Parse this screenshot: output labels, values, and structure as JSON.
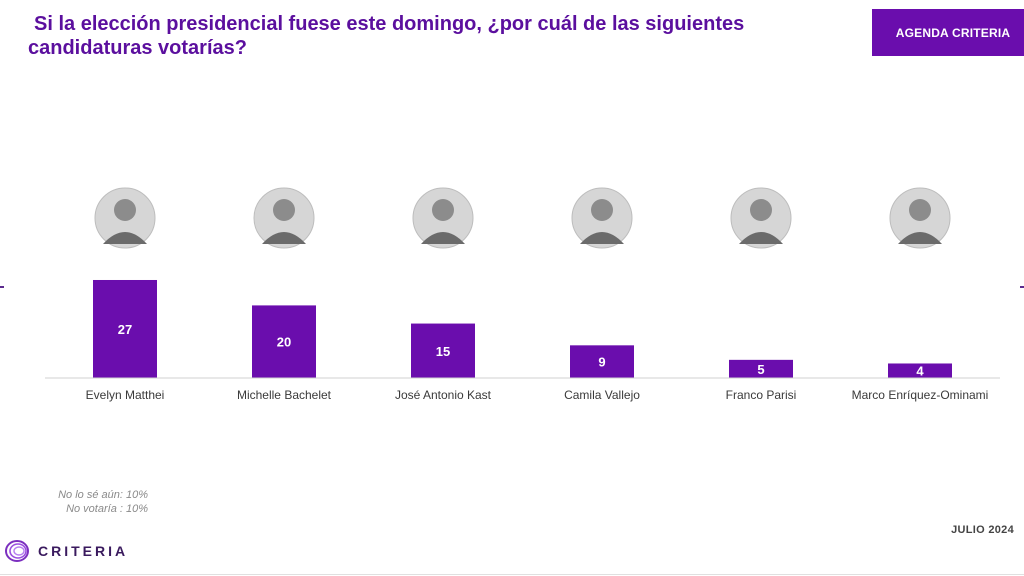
{
  "title": {
    "line1": "Si la elección presidencial fuese este domingo, ¿por cuál de las siguientes",
    "line2": "candidaturas votarías?"
  },
  "badge": "AGENDA CRITERIA",
  "chart_data": {
    "type": "bar",
    "categories": [
      "Evelyn Matthei",
      "Michelle Bachelet",
      "José Antonio Kast",
      "Camila Vallejo",
      "Franco Parisi",
      "Marco Enríquez-Ominami"
    ],
    "values": [
      27,
      20,
      15,
      9,
      5,
      4
    ],
    "ylim": [
      0,
      30
    ],
    "grid": false,
    "legend": "none",
    "bar_color": "#6a0dad"
  },
  "notes": {
    "no_se": "No lo sé aún: 10%",
    "no_votaria": "No votaría : 10%"
  },
  "date": "JULIO 2024",
  "brand": "CRITERIA",
  "colors": {
    "accent": "#6a0dad",
    "title": "#5b0f9e"
  }
}
